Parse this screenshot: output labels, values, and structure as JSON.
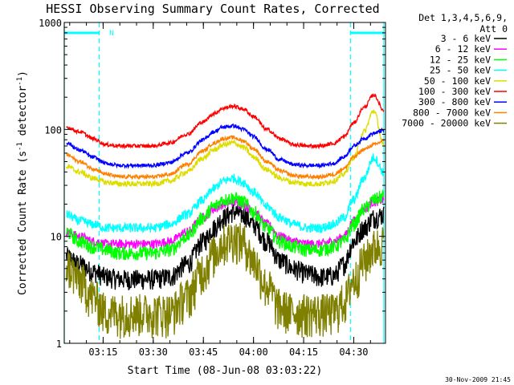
{
  "chart_data": {
    "type": "line",
    "title": "HESSI Observing Summary Count Rates, Corrected",
    "xlabel": "Start Time (08-Jun-08 03:03:22)",
    "ylabel": "Corrected Count Rate (s⁻¹ detector⁻¹)",
    "yscale": "log",
    "ylim": [
      1,
      1000
    ],
    "xlim": [
      "03:03:22",
      "04:39:30"
    ],
    "x_ticks": [
      "03:15",
      "03:30",
      "03:45",
      "04:00",
      "04:15",
      "04:30"
    ],
    "y_ticks": [
      "1",
      "10",
      "100",
      "1000"
    ],
    "grid": false,
    "legend_header": [
      "Det 1,3,4,5,6,9,",
      "Att 0"
    ],
    "legend_position": "right",
    "footer_date": "30-Nov-2009 21:45",
    "annotations": [
      {
        "text": "N",
        "x": "03:14:00",
        "y": 1000
      }
    ],
    "night_intervals": [
      [
        "03:03:22",
        "03:13:50"
      ],
      [
        "04:29:00",
        "04:39:00"
      ]
    ],
    "series": [
      {
        "name": "3 - 6 keV",
        "color": "#000000",
        "x": [
          "03:04",
          "03:08",
          "03:12",
          "03:16",
          "03:20",
          "03:25",
          "03:30",
          "03:35",
          "03:40",
          "03:45",
          "03:48",
          "03:51",
          "03:54",
          "03:57",
          "04:00",
          "04:04",
          "04:08",
          "04:12",
          "04:16",
          "04:20",
          "04:24",
          "04:27",
          "04:30",
          "04:33",
          "04:36",
          "04:39"
        ],
        "values": [
          6.5,
          5.5,
          4.7,
          4.2,
          4.0,
          4.0,
          4.0,
          4.2,
          5.5,
          9,
          12,
          15,
          17,
          16,
          13,
          9,
          6,
          5,
          4.5,
          4.2,
          4.3,
          5.5,
          9,
          12,
          15,
          16
        ]
      },
      {
        "name": "6 - 12 keV",
        "color": "#ff00ff",
        "x": [
          "03:04",
          "03:08",
          "03:12",
          "03:16",
          "03:20",
          "03:25",
          "03:30",
          "03:35",
          "03:40",
          "03:45",
          "03:48",
          "03:51",
          "03:54",
          "03:57",
          "04:00",
          "04:04",
          "04:08",
          "04:12",
          "04:16",
          "04:20",
          "04:24",
          "04:27",
          "04:30",
          "04:33",
          "04:36",
          "04:39"
        ],
        "values": [
          11,
          10,
          9,
          8.5,
          8.5,
          8.5,
          8.5,
          9,
          11,
          15,
          18,
          20,
          21,
          20,
          17,
          13,
          10,
          9,
          8.5,
          8.5,
          9,
          10,
          14,
          18,
          21,
          22
        ]
      },
      {
        "name": "12 - 25 keV",
        "color": "#00ff00",
        "x": [
          "03:04",
          "03:08",
          "03:12",
          "03:16",
          "03:20",
          "03:25",
          "03:30",
          "03:35",
          "03:40",
          "03:45",
          "03:48",
          "03:51",
          "03:54",
          "03:57",
          "04:00",
          "04:04",
          "04:08",
          "04:12",
          "04:16",
          "04:20",
          "04:24",
          "04:27",
          "04:30",
          "04:33",
          "04:36",
          "04:39"
        ],
        "values": [
          11,
          9,
          8,
          7.5,
          7,
          7,
          7,
          7.5,
          10,
          15,
          19,
          22,
          23,
          21,
          17,
          12,
          9,
          8,
          7.5,
          7.5,
          8,
          9,
          13,
          18,
          22,
          24
        ]
      },
      {
        "name": "25 - 50 keV",
        "color": "#00ffff",
        "x": [
          "03:04",
          "03:08",
          "03:12",
          "03:16",
          "03:20",
          "03:25",
          "03:30",
          "03:35",
          "03:40",
          "03:45",
          "03:48",
          "03:51",
          "03:54",
          "03:57",
          "04:00",
          "04:04",
          "04:08",
          "04:12",
          "04:16",
          "04:20",
          "04:24",
          "04:27",
          "04:30",
          "04:33",
          "04:36",
          "04:39"
        ],
        "values": [
          16,
          14,
          13,
          12,
          12,
          12,
          12,
          13,
          16,
          22,
          28,
          33,
          35,
          32,
          26,
          19,
          15,
          13,
          12,
          12,
          13,
          15,
          22,
          35,
          55,
          40
        ]
      },
      {
        "name": "50 - 100 keV",
        "color": "#dddd00",
        "x": [
          "03:04",
          "03:08",
          "03:12",
          "03:16",
          "03:20",
          "03:25",
          "03:30",
          "03:35",
          "03:40",
          "03:45",
          "03:48",
          "03:51",
          "03:54",
          "03:57",
          "04:00",
          "04:04",
          "04:08",
          "04:12",
          "04:16",
          "04:20",
          "04:24",
          "04:27",
          "04:30",
          "04:33",
          "04:36",
          "04:39"
        ],
        "values": [
          45,
          40,
          35,
          32,
          31,
          31,
          31,
          33,
          40,
          54,
          64,
          72,
          75,
          68,
          55,
          42,
          35,
          32,
          31,
          31,
          33,
          38,
          55,
          95,
          150,
          70
        ]
      },
      {
        "name": "100 - 300 keV",
        "color": "#ff0000",
        "x": [
          "03:04",
          "03:08",
          "03:12",
          "03:16",
          "03:20",
          "03:25",
          "03:30",
          "03:35",
          "03:40",
          "03:45",
          "03:48",
          "03:51",
          "03:54",
          "03:57",
          "04:00",
          "04:04",
          "04:08",
          "04:12",
          "04:16",
          "04:20",
          "04:24",
          "04:27",
          "04:30",
          "04:33",
          "04:36",
          "04:39"
        ],
        "values": [
          105,
          95,
          82,
          72,
          70,
          70,
          70,
          75,
          90,
          118,
          140,
          158,
          165,
          155,
          132,
          100,
          82,
          72,
          70,
          70,
          74,
          85,
          115,
          160,
          210,
          150
        ]
      },
      {
        "name": "300 - 800 keV",
        "color": "#0000ff",
        "x": [
          "03:04",
          "03:08",
          "03:12",
          "03:16",
          "03:20",
          "03:25",
          "03:30",
          "03:35",
          "03:40",
          "03:45",
          "03:48",
          "03:51",
          "03:54",
          "03:57",
          "04:00",
          "04:04",
          "04:08",
          "04:12",
          "04:16",
          "04:20",
          "04:24",
          "04:27",
          "04:30",
          "04:33",
          "04:36",
          "04:39"
        ],
        "values": [
          75,
          64,
          55,
          48,
          46,
          46,
          46,
          49,
          60,
          80,
          95,
          105,
          108,
          100,
          86,
          65,
          52,
          47,
          46,
          46,
          48,
          55,
          70,
          82,
          92,
          98
        ]
      },
      {
        "name": "800 - 7000 keV",
        "color": "#ff8000",
        "x": [
          "03:04",
          "03:08",
          "03:12",
          "03:16",
          "03:20",
          "03:25",
          "03:30",
          "03:35",
          "03:40",
          "03:45",
          "03:48",
          "03:51",
          "03:54",
          "03:57",
          "04:00",
          "04:04",
          "04:08",
          "04:12",
          "04:16",
          "04:20",
          "04:24",
          "04:27",
          "04:30",
          "04:33",
          "04:36",
          "04:39"
        ],
        "values": [
          58,
          50,
          43,
          38,
          36,
          36,
          36,
          38,
          47,
          63,
          74,
          82,
          84,
          78,
          66,
          50,
          41,
          37,
          36,
          36,
          38,
          43,
          55,
          65,
          72,
          78
        ]
      },
      {
        "name": "7000 - 20000 keV",
        "color": "#808000",
        "x": [
          "03:04",
          "03:08",
          "03:12",
          "03:16",
          "03:20",
          "03:25",
          "03:30",
          "03:35",
          "03:40",
          "03:45",
          "03:48",
          "03:51",
          "03:54",
          "03:57",
          "04:00",
          "04:04",
          "04:08",
          "04:12",
          "04:16",
          "04:20",
          "04:24",
          "04:27",
          "04:30",
          "04:33",
          "04:36",
          "04:39"
        ],
        "values": [
          5.5,
          4.0,
          2.8,
          2.0,
          2.0,
          2.0,
          2.0,
          2.0,
          2.8,
          5,
          7,
          9,
          10,
          9,
          6,
          3.5,
          2.2,
          2.0,
          2.0,
          2.0,
          2.0,
          2.5,
          4,
          6,
          8,
          9
        ]
      }
    ]
  },
  "colors": {
    "background": "#ffffff",
    "axes": "#000000",
    "night_band": "#00ffff"
  }
}
